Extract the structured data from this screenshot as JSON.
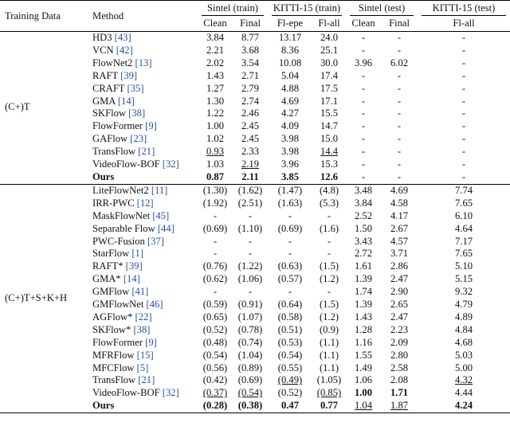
{
  "header": {
    "training_data": "Training Data",
    "method": "Method",
    "groups": [
      "Sintel (train)",
      "KITTI-15 (train)",
      "Sintel (test)",
      "KITTI-15 (test)"
    ],
    "columns": [
      "Clean",
      "Final",
      "Fl-epe",
      "Fl-all",
      "Clean",
      "Final",
      "Fl-all"
    ]
  },
  "sections": [
    {
      "training_data": "(C+)T",
      "rows": [
        {
          "method": "HD3",
          "ref": "[43]",
          "values": [
            "3.84",
            "8.77",
            "13.17",
            "24.0",
            "-",
            "-",
            "-"
          ]
        },
        {
          "method": "VCN",
          "ref": "[42]",
          "values": [
            "2.21",
            "3.68",
            "8.36",
            "25.1",
            "-",
            "-",
            "-"
          ]
        },
        {
          "method": "FlowNet2",
          "ref": "[13]",
          "values": [
            "2.02",
            "3.54",
            "10.08",
            "30.0",
            "3.96",
            "6.02",
            "-"
          ]
        },
        {
          "method": "RAFT",
          "ref": "[39]",
          "values": [
            "1.43",
            "2.71",
            "5.04",
            "17.4",
            "-",
            "-",
            "-"
          ]
        },
        {
          "method": "CRAFT",
          "ref": "[35]",
          "values": [
            "1.27",
            "2.79",
            "4.88",
            "17.5",
            "-",
            "-",
            "-"
          ]
        },
        {
          "method": "GMA",
          "ref": "[14]",
          "values": [
            "1.30",
            "2.74",
            "4.69",
            "17.1",
            "-",
            "-",
            "-"
          ]
        },
        {
          "method": "SKFlow",
          "ref": "[38]",
          "values": [
            "1.22",
            "2.46",
            "4.27",
            "15.5",
            "-",
            "-",
            "-"
          ]
        },
        {
          "method": "FlowFormer",
          "ref": "[9]",
          "values": [
            "1.00",
            "2.45",
            "4.09",
            "14.7",
            "-",
            "-",
            "-"
          ]
        },
        {
          "method": "GAFlow",
          "ref": "[23]",
          "values": [
            "1.02",
            "2.45",
            "3.98",
            "15.0",
            "-",
            "-",
            "-"
          ]
        },
        {
          "method": "TransFlow",
          "ref": "[21]",
          "values": [
            "0.93",
            "2.33",
            "3.98",
            "14.4",
            "-",
            "-",
            "-"
          ],
          "underline": [
            0,
            3
          ]
        },
        {
          "method": "VideoFlow-BOF",
          "ref": "[32]",
          "values": [
            "1.03",
            "2.19",
            "3.96",
            "15.3",
            "-",
            "-",
            "-"
          ],
          "underline": [
            1
          ]
        },
        {
          "method": "Ours",
          "values": [
            "0.87",
            "2.11",
            "3.85",
            "12.6",
            "-",
            "-",
            "-"
          ],
          "bold": [
            0,
            1,
            2,
            3
          ],
          "method_bold": true
        }
      ]
    },
    {
      "training_data": "(C+)T+S+K+H",
      "rows": [
        {
          "method": "LiteFlowNet2",
          "ref": "[11]",
          "values": [
            "(1.30)",
            "(1.62)",
            "(1.47)",
            "(4.8)",
            "3.48",
            "4.69",
            "7.74"
          ]
        },
        {
          "method": "IRR-PWC",
          "ref": "[12]",
          "values": [
            "(1.92)",
            "(2.51)",
            "(1.63)",
            "(5.3)",
            "3.84",
            "4.58",
            "7.65"
          ]
        },
        {
          "method": "MaskFlowNet",
          "ref": "[45]",
          "values": [
            "-",
            "-",
            "-",
            "-",
            "2.52",
            "4.17",
            "6.10"
          ]
        },
        {
          "method": "Separable Flow",
          "ref": "[44]",
          "values": [
            "(0.69)",
            "(1.10)",
            "(0.69)",
            "(1.6)",
            "1.50",
            "2.67",
            "4.64"
          ]
        },
        {
          "method": "PWC-Fusion",
          "ref": "[37]",
          "values": [
            "-",
            "-",
            "-",
            "-",
            "3.43",
            "4.57",
            "7.17"
          ]
        },
        {
          "method": "StarFlow",
          "ref": "[1]",
          "values": [
            "-",
            "-",
            "-",
            "-",
            "2.72",
            "3.71",
            "7.65"
          ]
        },
        {
          "method": "RAFT*",
          "ref": "[39]",
          "values": [
            "(0.76)",
            "(1.22)",
            "(0.63)",
            "(1.5)",
            "1.61",
            "2.86",
            "5.10"
          ]
        },
        {
          "method": "GMA*",
          "ref": "[14]",
          "values": [
            "(0.62)",
            "(1.06)",
            "(0.57)",
            "(1.2)",
            "1.39",
            "2.47",
            "5.15"
          ]
        },
        {
          "method": "GMFlow",
          "ref": "[41]",
          "values": [
            "-",
            "-",
            "-",
            "-",
            "1.74",
            "2.90",
            "9.32"
          ]
        },
        {
          "method": "GMFlowNet",
          "ref": "[46]",
          "values": [
            "(0.59)",
            "(0.91)",
            "(0.64)",
            "(1.5)",
            "1.39",
            "2.65",
            "4.79"
          ]
        },
        {
          "method": "AGFlow*",
          "ref": "[22]",
          "values": [
            "(0.65)",
            "(1.07)",
            "(0.58)",
            "(1.2)",
            "1.43",
            "2.47",
            "4.89"
          ]
        },
        {
          "method": "SKFlow*",
          "ref": "[38]",
          "values": [
            "(0.52)",
            "(0.78)",
            "(0.51)",
            "(0.9)",
            "1.28",
            "2.23",
            "4.84"
          ]
        },
        {
          "method": "FlowFormer",
          "ref": "[9]",
          "values": [
            "(0.48)",
            "(0.74)",
            "(0.53)",
            "(1.1)",
            "1.16",
            "2.09",
            "4.68"
          ]
        },
        {
          "method": "MFRFlow",
          "ref": "[15]",
          "values": [
            "(0.54)",
            "(1.04)",
            "(0.54)",
            "(1.1)",
            "1.55",
            "2.80",
            "5.03"
          ]
        },
        {
          "method": "MFCFlow",
          "ref": "[5]",
          "values": [
            "(0.56)",
            "(0.89)",
            "(0.55)",
            "(1.1)",
            "1.49",
            "2.58",
            "5.00"
          ]
        },
        {
          "method": "TransFlow",
          "ref": "[21]",
          "values": [
            "(0.42)",
            "(0.69)",
            "(0.49)",
            "(1.05)",
            "1.06",
            "2.08",
            "4.32"
          ],
          "underline": [
            2,
            6
          ]
        },
        {
          "method": "VideoFlow-BOF",
          "ref": "[32]",
          "values": [
            "(0.37)",
            "(0.54)",
            "(0.52)",
            "(0.85)",
            "1.00",
            "1.71",
            "4.44"
          ],
          "underline": [
            0,
            1,
            3
          ],
          "bold": [
            4,
            5
          ]
        },
        {
          "method": "Ours",
          "values": [
            "(0.28)",
            "(0.38)",
            "0.47",
            "0.77",
            "1.04",
            "1.87",
            "4.24"
          ],
          "bold": [
            0,
            1,
            2,
            3,
            6
          ],
          "underline": [
            4,
            5
          ],
          "method_bold": true
        }
      ]
    }
  ]
}
